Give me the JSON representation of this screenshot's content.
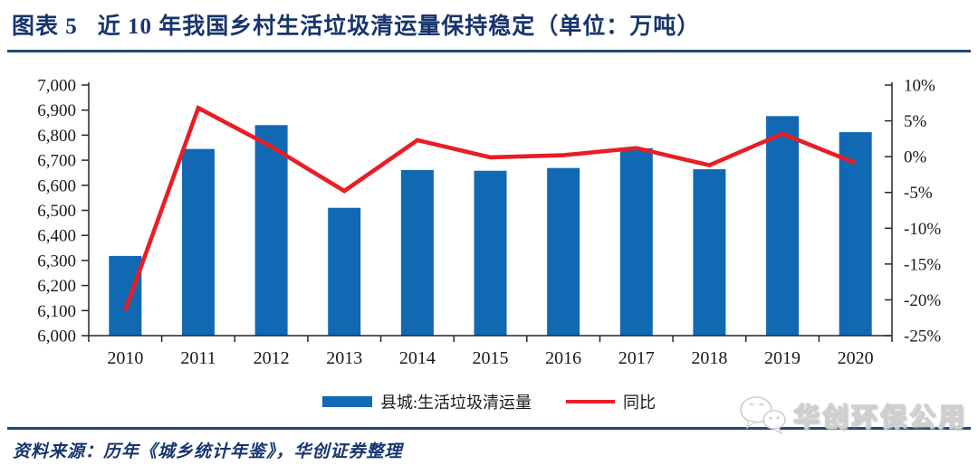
{
  "figure": {
    "title_prefix": "图表 5",
    "title_main": "近 10 年我国乡村生活垃圾清运量保持稳定（单位：万吨）",
    "source_note": "资料来源：历年《城乡统计年鉴》，华创证券整理",
    "watermark_text": "华创环保公用",
    "watermark_icon": "wechat-icon"
  },
  "colors": {
    "bar": "#1169B4",
    "line": "#E81E25",
    "heading": "#17356F",
    "rule": "#1F4778",
    "axis": "#262626",
    "text": "#1A1A1A"
  },
  "chart_data": {
    "type": "bar",
    "subtype": "combo-bar-line-dual-axis",
    "title": "近 10 年我国乡村生活垃圾清运量保持稳定（单位：万吨）",
    "categories": [
      "2010",
      "2011",
      "2012",
      "2013",
      "2014",
      "2015",
      "2016",
      "2017",
      "2018",
      "2019",
      "2020"
    ],
    "series": [
      {
        "name": "县城:生活垃圾清运量",
        "type": "bar",
        "axis": "left",
        "unit": "万吨",
        "values": [
          6318,
          6745,
          6840,
          6510,
          6661,
          6658,
          6669,
          6748,
          6664,
          6876,
          6812
        ]
      },
      {
        "name": "同比",
        "type": "line",
        "axis": "right",
        "unit": "%",
        "values": [
          -21.5,
          6.8,
          1.4,
          -4.8,
          2.3,
          -0.1,
          0.2,
          1.2,
          -1.2,
          3.2,
          -0.9
        ]
      }
    ],
    "left_axis": {
      "min": 6000,
      "max": 7000,
      "step": 100,
      "tick_format": "comma"
    },
    "right_axis": {
      "min": -25,
      "max": 10,
      "step": 5,
      "suffix": "%"
    },
    "legend_position": "bottom",
    "grid": false
  }
}
